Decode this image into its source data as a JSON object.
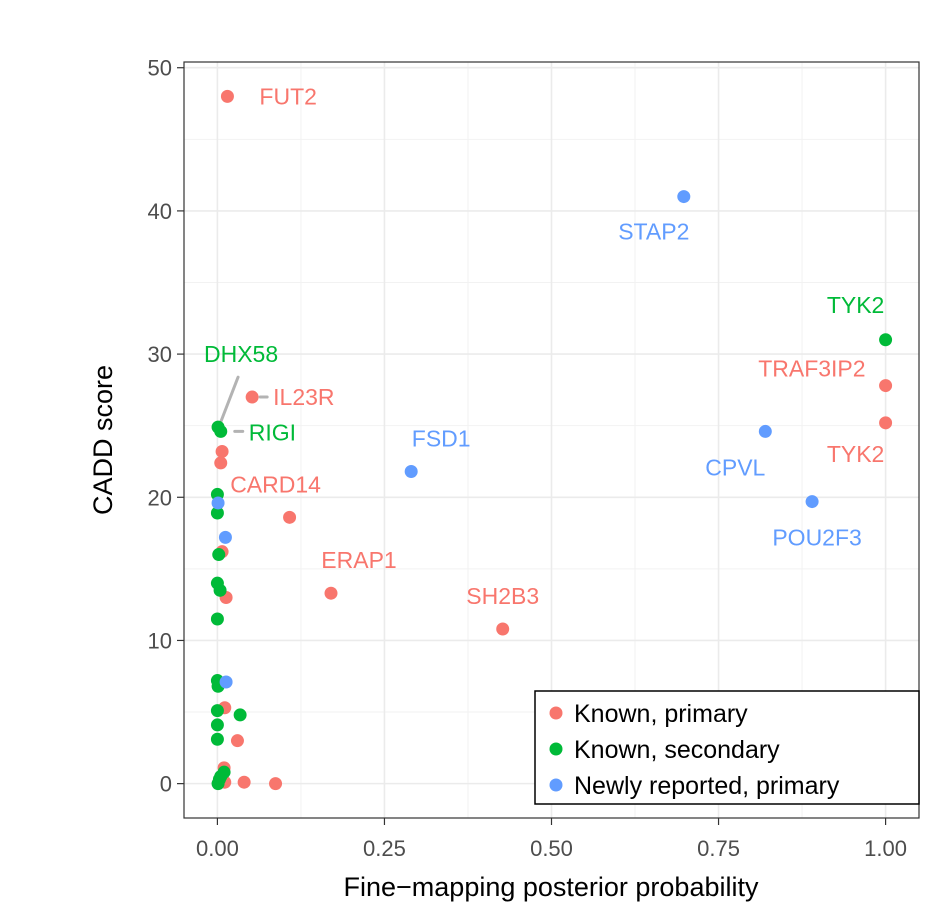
{
  "chart_data": {
    "type": "scatter",
    "title": "",
    "xlabel": "Fine−mapping posterior probability",
    "ylabel": "CADD score",
    "xlim": [
      -0.05,
      1.05
    ],
    "ylim": [
      -2.4,
      50.4
    ],
    "x_ticks": [
      "0.00",
      "0.25",
      "0.50",
      "0.75",
      "1.00"
    ],
    "y_ticks": [
      "0",
      "10",
      "20",
      "30",
      "40",
      "50"
    ],
    "grid": true,
    "legend_position": "bottom-right",
    "series": [
      {
        "name": "Known, primary",
        "color": "#F8766D",
        "points": [
          {
            "x": 0.015,
            "y": 48.0,
            "label": "FUT2"
          },
          {
            "x": 0.052,
            "y": 27.0,
            "label": "IL23R"
          },
          {
            "x": 0.007,
            "y": 23.2
          },
          {
            "x": 0.005,
            "y": 22.4
          },
          {
            "x": 0.108,
            "y": 18.6,
            "label": "CARD14"
          },
          {
            "x": 0.007,
            "y": 16.2
          },
          {
            "x": 0.17,
            "y": 13.3,
            "label": "ERAP1"
          },
          {
            "x": 0.013,
            "y": 13.0
          },
          {
            "x": 0.427,
            "y": 10.8,
            "label": "SH2B3"
          },
          {
            "x": 0.011,
            "y": 5.3
          },
          {
            "x": 0.03,
            "y": 3.0
          },
          {
            "x": 0.01,
            "y": 1.1
          },
          {
            "x": 0.011,
            "y": 0.1
          },
          {
            "x": 0.04,
            "y": 0.1
          },
          {
            "x": 0.087,
            "y": 0.0
          },
          {
            "x": 1.0,
            "y": 27.8,
            "label": "TRAF3IP2"
          },
          {
            "x": 1.0,
            "y": 25.2,
            "label": "TYK2"
          }
        ]
      },
      {
        "name": "Known, secondary",
        "color": "#00BA38",
        "points": [
          {
            "x": 1.0,
            "y": 31.0,
            "label": "TYK2"
          },
          {
            "x": 0.001,
            "y": 24.9,
            "label": "DHX58"
          },
          {
            "x": 0.005,
            "y": 24.6,
            "label": "RIGI"
          },
          {
            "x": 0.0,
            "y": 20.2
          },
          {
            "x": 0.0,
            "y": 18.9
          },
          {
            "x": 0.002,
            "y": 16.0
          },
          {
            "x": 0.0,
            "y": 14.0
          },
          {
            "x": 0.004,
            "y": 13.5
          },
          {
            "x": 0.0,
            "y": 11.5
          },
          {
            "x": 0.0,
            "y": 7.2
          },
          {
            "x": 0.001,
            "y": 6.8
          },
          {
            "x": 0.0,
            "y": 5.1
          },
          {
            "x": 0.034,
            "y": 4.8
          },
          {
            "x": 0.0,
            "y": 4.1
          },
          {
            "x": 0.0,
            "y": 3.1
          },
          {
            "x": 0.01,
            "y": 0.8
          },
          {
            "x": 0.005,
            "y": 0.5
          },
          {
            "x": 0.003,
            "y": 0.3
          },
          {
            "x": 0.001,
            "y": 0.0
          }
        ]
      },
      {
        "name": "Newly reported, primary",
        "color": "#619CFF",
        "points": [
          {
            "x": 0.698,
            "y": 41.0,
            "label": "STAP2"
          },
          {
            "x": 0.29,
            "y": 21.8,
            "label": "FSD1"
          },
          {
            "x": 0.82,
            "y": 24.6,
            "label": "CPVL"
          },
          {
            "x": 0.89,
            "y": 19.7,
            "label": "POU2F3"
          },
          {
            "x": 0.012,
            "y": 17.2
          },
          {
            "x": 0.001,
            "y": 19.6
          },
          {
            "x": 0.013,
            "y": 7.1
          }
        ]
      }
    ]
  }
}
